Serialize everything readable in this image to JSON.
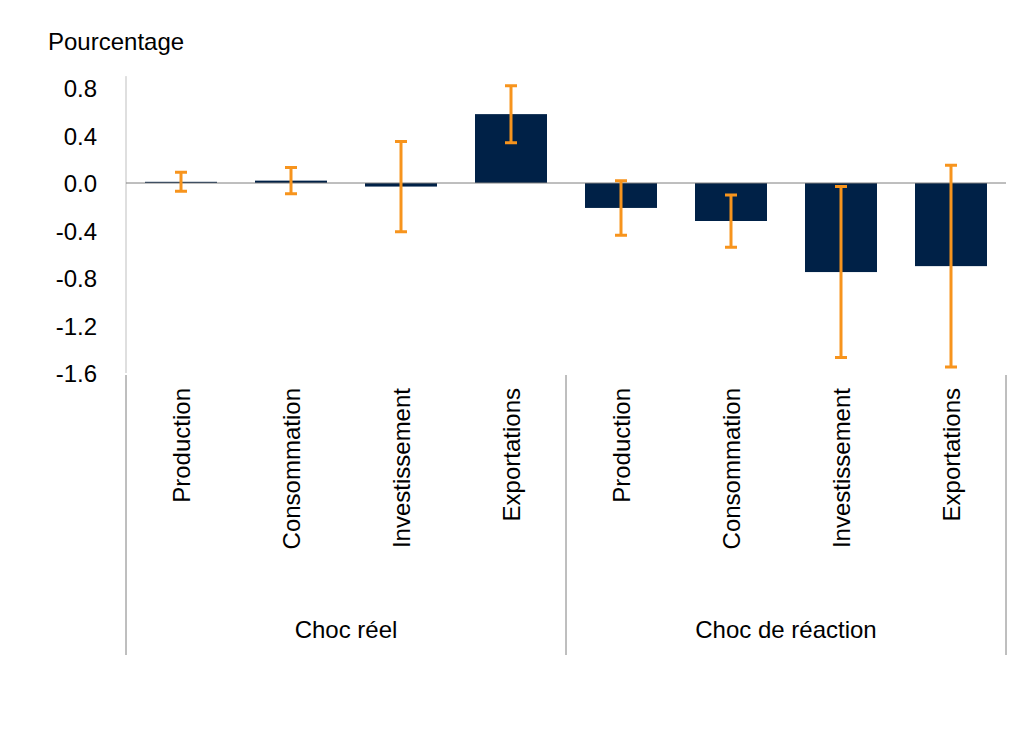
{
  "chart_data": {
    "type": "bar",
    "y_label": "Pourcentage",
    "categories": [
      "Production",
      "Consommation",
      "Investissement",
      "Exportations",
      "Production",
      "Consommation",
      "Investissement",
      "Exportations"
    ],
    "groups": [
      "Choc réel",
      "Choc réel",
      "Choc réel",
      "Choc réel",
      "Choc de réaction",
      "Choc de réaction",
      "Choc de réaction",
      "Choc de réaction"
    ],
    "values": [
      0.01,
      0.02,
      -0.03,
      0.58,
      -0.21,
      -0.32,
      -0.75,
      -0.7
    ],
    "errors": [
      0.08,
      0.11,
      0.38,
      0.24,
      0.23,
      0.22,
      0.72,
      0.85
    ],
    "color": "#002147",
    "error_color": "#f7941d",
    "ylim": [
      -1.6,
      0.9
    ],
    "yticks": [
      {
        "value": 0.8,
        "label": "0.8"
      },
      {
        "value": 0.4,
        "label": "0.4"
      },
      {
        "value": 0,
        "label": "0.0"
      },
      {
        "value": -0.4,
        "label": "-0.4"
      },
      {
        "value": -0.8,
        "label": "-0.8"
      },
      {
        "value": -1.2,
        "label": "-1.2"
      },
      {
        "value": -1.6,
        "label": "-1.6"
      }
    ],
    "grid": false
  }
}
